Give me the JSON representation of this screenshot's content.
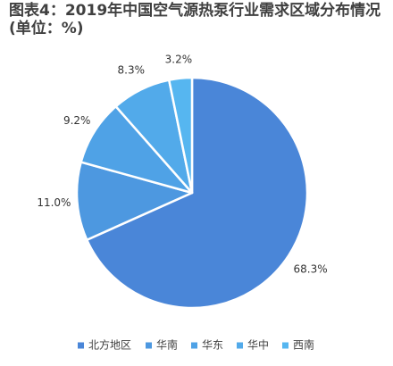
{
  "chart_data": {
    "type": "pie",
    "title": "图表4：2019年中国空气源热泵行业需求区域分布情况",
    "subtitle": "(单位：%)",
    "categories": [
      "北方地区",
      "华南",
      "华东",
      "华中",
      "西南"
    ],
    "values": [
      68.3,
      11.0,
      9.2,
      8.3,
      3.2
    ],
    "value_labels": [
      "68.3%",
      "11.0%",
      "9.2%",
      "8.3%",
      "3.2%"
    ],
    "colors": [
      "#4a86d8",
      "#4d98e0",
      "#4fa2e6",
      "#52aaea",
      "#56b6f0"
    ],
    "start_angle": "12 o'clock",
    "direction": "clockwise",
    "slice_border": "#ffffff",
    "legend_position": "bottom"
  }
}
